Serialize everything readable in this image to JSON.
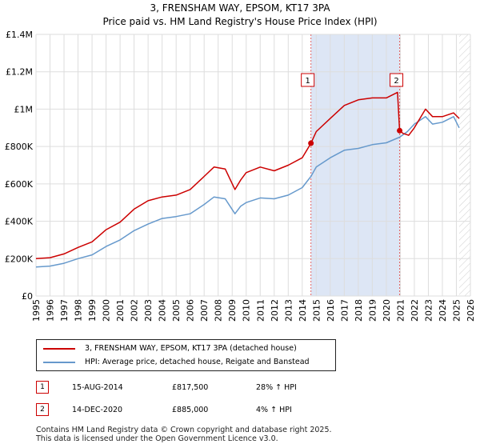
{
  "header": {
    "title_line1": "3, FRENSHAM WAY, EPSOM, KT17 3PA",
    "title_line2": "Price paid vs. HM Land Registry's House Price Index (HPI)"
  },
  "chart_data": {
    "type": "line",
    "title": "3, FRENSHAM WAY, EPSOM, KT17 3PA — Price paid vs. HM Land Registry's House Price Index (HPI)",
    "xlabel": "",
    "ylabel": "",
    "xlim": [
      1995,
      2026
    ],
    "ylim": [
      0,
      1400000
    ],
    "x_ticks": [
      "1995",
      "1996",
      "1997",
      "1998",
      "1999",
      "2000",
      "2001",
      "2002",
      "2003",
      "2004",
      "2005",
      "2006",
      "2007",
      "2008",
      "2009",
      "2010",
      "2011",
      "2012",
      "2013",
      "2014",
      "2015",
      "2016",
      "2017",
      "2018",
      "2019",
      "2020",
      "2021",
      "2022",
      "2023",
      "2024",
      "2025",
      "2026"
    ],
    "y_ticks": [
      {
        "value": 0,
        "label": "£0"
      },
      {
        "value": 200000,
        "label": "£200K"
      },
      {
        "value": 400000,
        "label": "£400K"
      },
      {
        "value": 600000,
        "label": "£600K"
      },
      {
        "value": 800000,
        "label": "£800K"
      },
      {
        "value": 1000000,
        "label": "£1M"
      },
      {
        "value": 1200000,
        "label": "£1.2M"
      },
      {
        "value": 1400000,
        "label": "£1.4M"
      }
    ],
    "grid": true,
    "shaded_period": [
      2014.62,
      2020.95
    ],
    "future_hatch_from": 2025.2,
    "colors": {
      "property": "#cc0000",
      "hpi": "#6699cc",
      "shade": "#dde6f5",
      "vline": "#e06666",
      "grid": "#dddddd"
    },
    "series": [
      {
        "name": "3, FRENSHAM WAY, EPSOM, KT17 3PA (detached house)",
        "color": "#cc0000",
        "x": [
          1995,
          1996,
          1997,
          1998,
          1999,
          2000,
          2001,
          2002,
          2003,
          2004,
          2005,
          2006,
          2007,
          2007.7,
          2008.5,
          2009.2,
          2009.6,
          2010,
          2011,
          2012,
          2013,
          2014,
          2014.62,
          2015,
          2016,
          2017,
          2018,
          2019,
          2020,
          2020.8,
          2020.95,
          2021.2,
          2021.6,
          2022,
          2022.8,
          2023.3,
          2024,
          2024.8,
          2025.2
        ],
        "y": [
          200000,
          205000,
          225000,
          260000,
          290000,
          355000,
          395000,
          465000,
          510000,
          530000,
          540000,
          570000,
          640000,
          690000,
          680000,
          570000,
          620000,
          660000,
          690000,
          670000,
          700000,
          740000,
          817500,
          880000,
          950000,
          1020000,
          1050000,
          1060000,
          1060000,
          1090000,
          885000,
          870000,
          860000,
          900000,
          1000000,
          960000,
          960000,
          980000,
          950000
        ]
      },
      {
        "name": "HPI: Average price, detached house, Reigate and Banstead",
        "color": "#6699cc",
        "x": [
          1995,
          1996,
          1997,
          1998,
          1999,
          2000,
          2001,
          2002,
          2003,
          2004,
          2005,
          2006,
          2007,
          2007.7,
          2008.5,
          2009.2,
          2009.6,
          2010,
          2011,
          2012,
          2013,
          2014,
          2014.62,
          2015,
          2016,
          2017,
          2018,
          2019,
          2020,
          2020.95,
          2021.5,
          2022,
          2022.8,
          2023.3,
          2024,
          2024.8,
          2025.2
        ],
        "y": [
          155000,
          160000,
          175000,
          200000,
          220000,
          265000,
          300000,
          350000,
          385000,
          415000,
          425000,
          440000,
          490000,
          530000,
          520000,
          440000,
          480000,
          500000,
          525000,
          520000,
          540000,
          580000,
          640000,
          690000,
          740000,
          780000,
          790000,
          810000,
          820000,
          850000,
          880000,
          920000,
          960000,
          920000,
          930000,
          960000,
          900000
        ]
      }
    ],
    "annotations": [
      {
        "label": "1",
        "x": 2014.62,
        "y": 817500
      },
      {
        "label": "2",
        "x": 2020.95,
        "y": 885000
      }
    ]
  },
  "legend": {
    "property_label": "3, FRENSHAM WAY, EPSOM, KT17 3PA (detached house)",
    "hpi_label": "HPI: Average price, detached house, Reigate and Banstead"
  },
  "sales": [
    {
      "num": "1",
      "date": "15-AUG-2014",
      "price": "£817,500",
      "hpi": "28% ↑ HPI"
    },
    {
      "num": "2",
      "date": "14-DEC-2020",
      "price": "£885,000",
      "hpi": "4% ↑ HPI"
    }
  ],
  "footer": {
    "line1": "Contains HM Land Registry data © Crown copyright and database right 2025.",
    "line2": "This data is licensed under the Open Government Licence v3.0."
  }
}
